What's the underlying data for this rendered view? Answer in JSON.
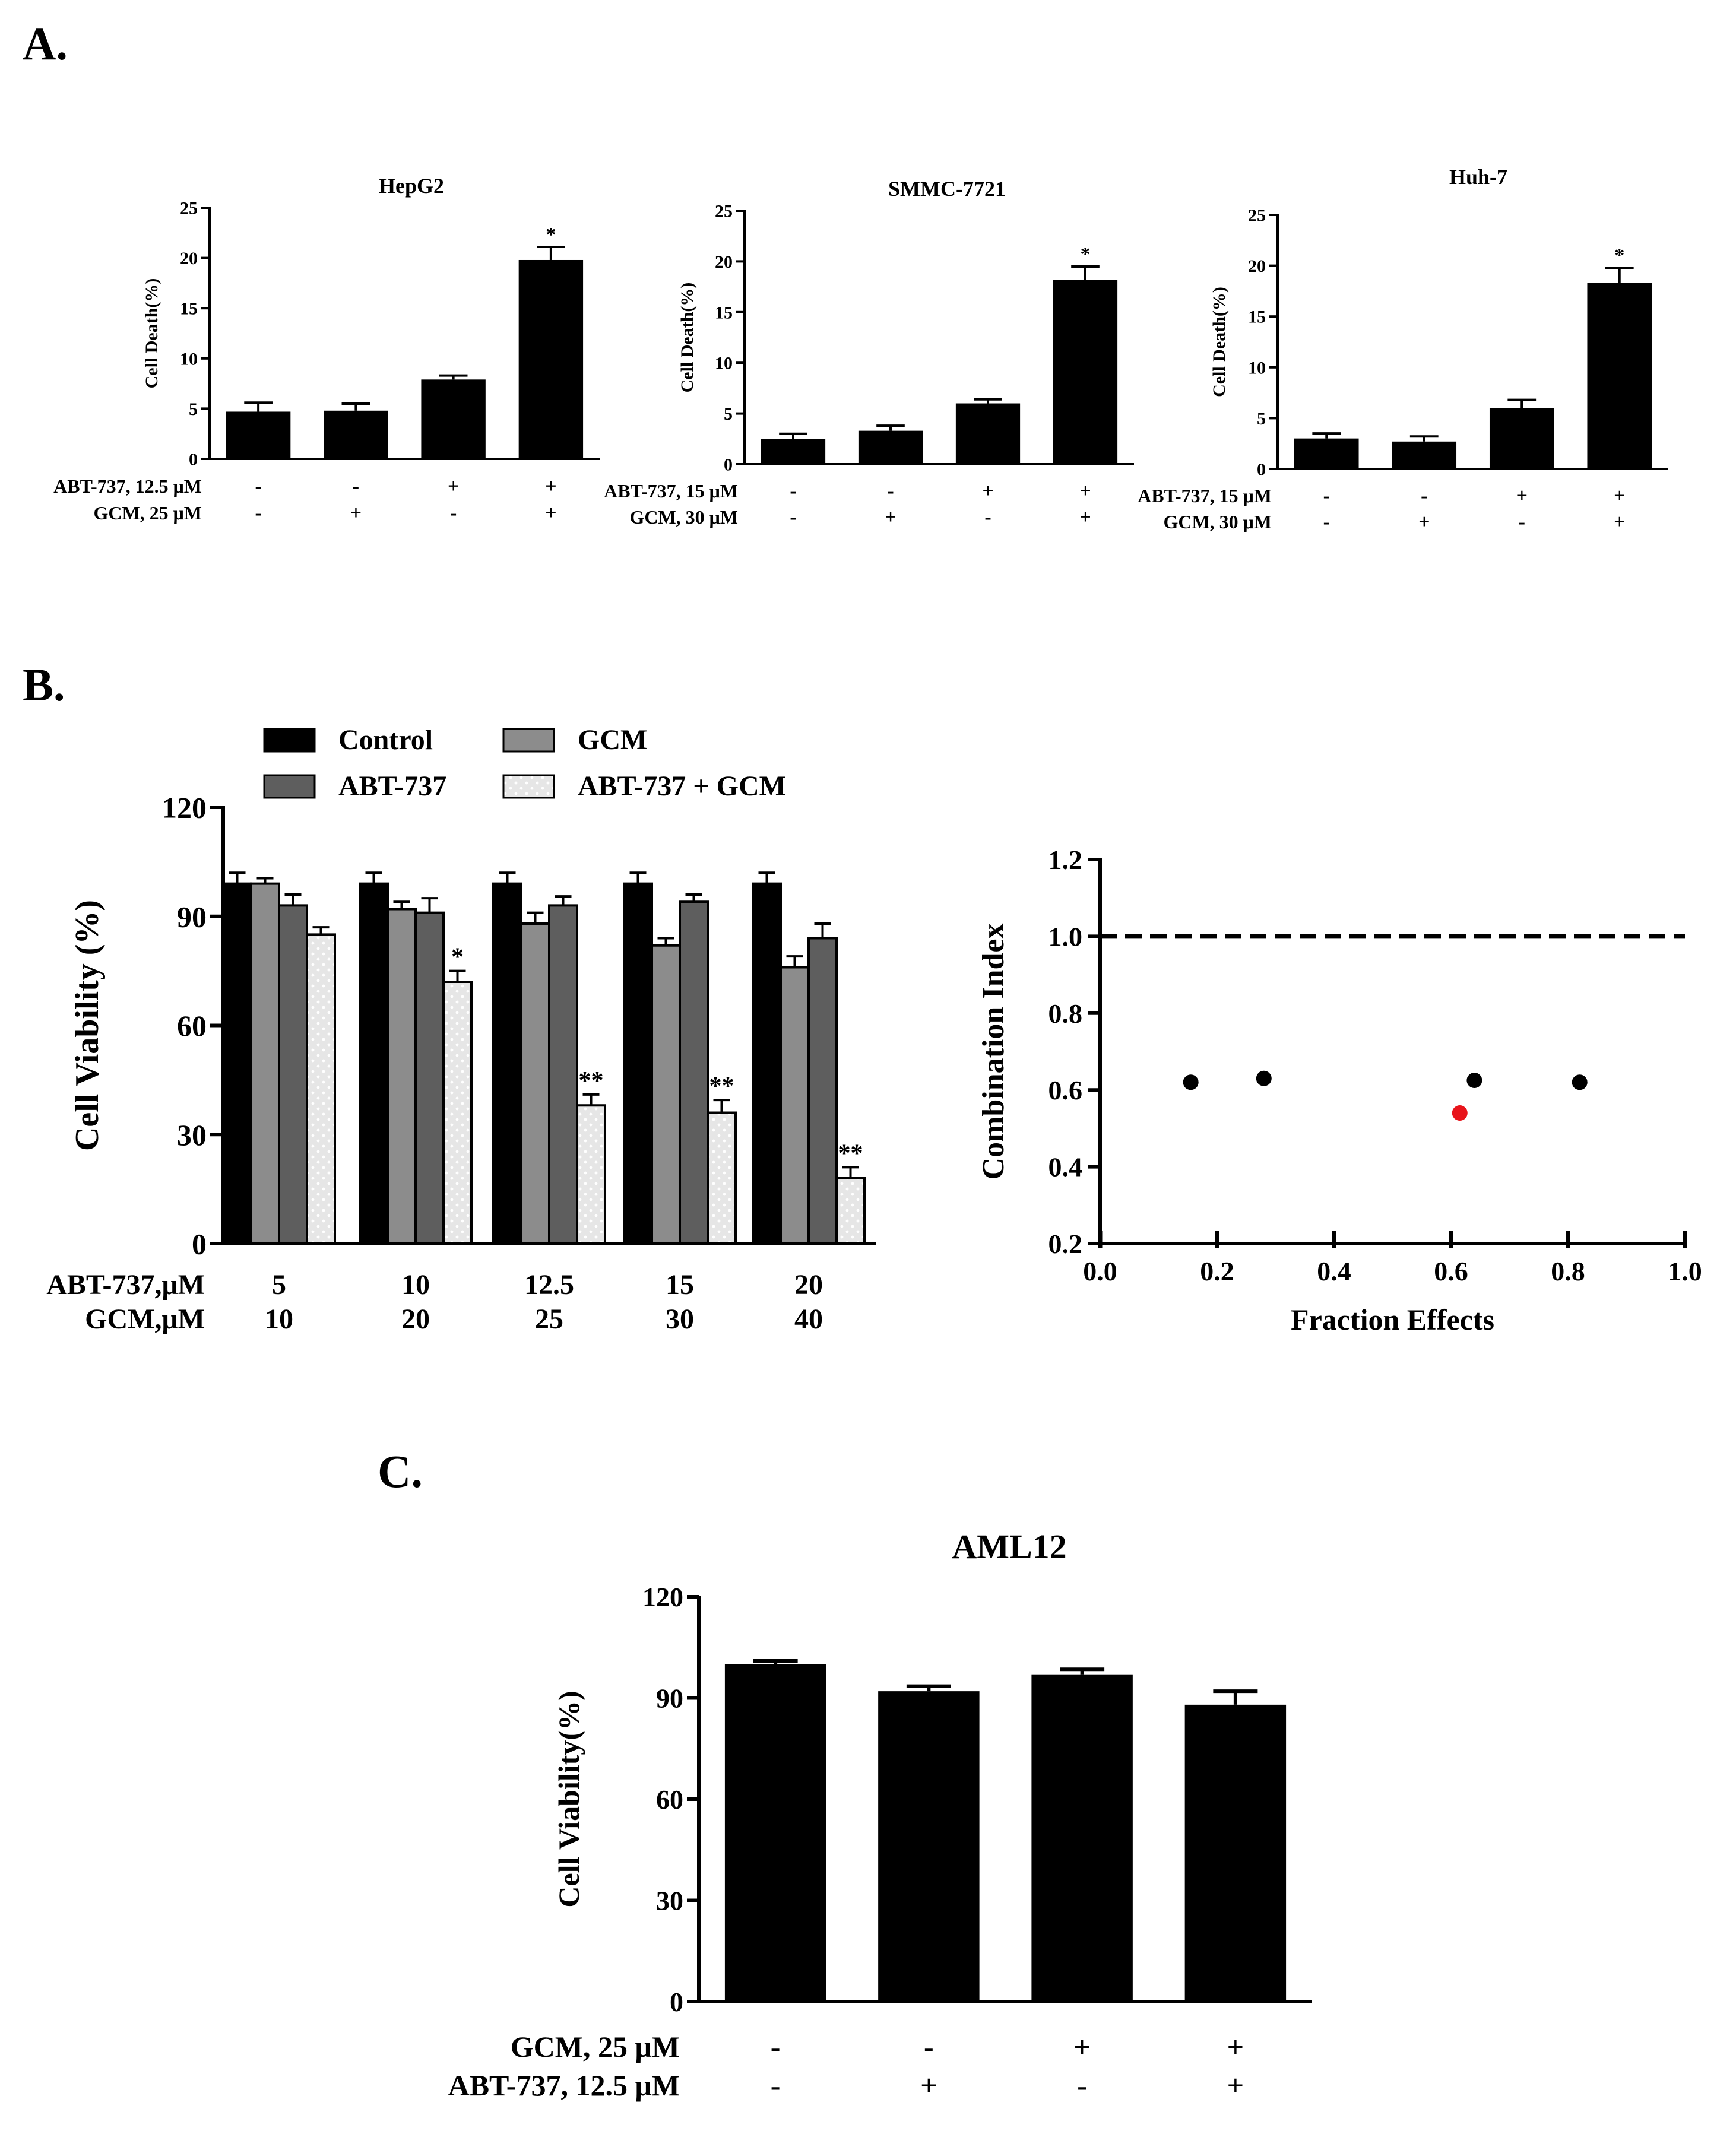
{
  "panels": {
    "A": "A.",
    "B": "B.",
    "C": "C."
  },
  "colors": {
    "bar_black": "#000000",
    "gray_light": "#8c8c8c",
    "gray_dark": "#5e5e5e",
    "dotted_bg": "#e6e6e6",
    "highlight": "#e8141b"
  },
  "chart_data": [
    {
      "id": "hepg2",
      "type": "bar",
      "title": "HepG2",
      "ylabel": "Cell Death(%)",
      "ylim": [
        0,
        25
      ],
      "yticks": [
        0,
        5,
        10,
        15,
        20,
        25
      ],
      "values": [
        4.7,
        4.8,
        7.9,
        19.8
      ],
      "errors": [
        0.9,
        0.7,
        0.4,
        1.3
      ],
      "significance": [
        "",
        "",
        "",
        "*"
      ],
      "conditions": [
        {
          "label": "ABT-737, 12.5 μM",
          "signs": [
            "-",
            "-",
            "+",
            "+"
          ]
        },
        {
          "label": "GCM, 25 μM",
          "signs": [
            "-",
            "+",
            "-",
            "+"
          ]
        }
      ]
    },
    {
      "id": "smmc",
      "type": "bar",
      "title": "SMMC-7721",
      "ylabel": "Cell Death(%)",
      "ylim": [
        0,
        25
      ],
      "yticks": [
        0,
        5,
        10,
        15,
        20,
        25
      ],
      "values": [
        2.5,
        3.3,
        6.0,
        18.2
      ],
      "errors": [
        0.5,
        0.5,
        0.4,
        1.3
      ],
      "significance": [
        "",
        "",
        "",
        "*"
      ],
      "conditions": [
        {
          "label": "ABT-737, 15 μM",
          "signs": [
            "-",
            "-",
            "+",
            "+"
          ]
        },
        {
          "label": "GCM, 30 μM",
          "signs": [
            "-",
            "+",
            "-",
            "+"
          ]
        }
      ]
    },
    {
      "id": "huh7",
      "type": "bar",
      "title": "Huh-7",
      "ylabel": "Cell Death(%)",
      "ylim": [
        0,
        25
      ],
      "yticks": [
        0,
        5,
        10,
        15,
        20,
        25
      ],
      "values": [
        3.0,
        2.7,
        6.0,
        18.3
      ],
      "errors": [
        0.5,
        0.5,
        0.8,
        1.5
      ],
      "significance": [
        "",
        "",
        "",
        "*"
      ],
      "conditions": [
        {
          "label": "ABT-737, 15 μM",
          "signs": [
            "-",
            "-",
            "+",
            "+"
          ]
        },
        {
          "label": "GCM, 30 μM",
          "signs": [
            "-",
            "+",
            "-",
            "+"
          ]
        }
      ]
    },
    {
      "id": "viability",
      "type": "bar",
      "title": "",
      "ylabel": "Cell Viability (%)",
      "ylim": [
        0,
        120
      ],
      "yticks": [
        0,
        30,
        60,
        90,
        120
      ],
      "categories": [
        "5",
        "10",
        "12.5",
        "15",
        "20"
      ],
      "category_rows": [
        {
          "label": "ABT-737,μM",
          "values": [
            "5",
            "10",
            "12.5",
            "15",
            "20"
          ]
        },
        {
          "label": "GCM,μM",
          "values": [
            "10",
            "20",
            "25",
            "30",
            "40"
          ]
        }
      ],
      "series": [
        {
          "name": "Control",
          "style": "black",
          "values": [
            99,
            99,
            99,
            99,
            99
          ],
          "errors": [
            3,
            3,
            3,
            3,
            3
          ],
          "significance": [
            "",
            "",
            "",
            "",
            ""
          ]
        },
        {
          "name": "GCM",
          "style": "gray_light",
          "values": [
            99,
            92,
            88,
            82,
            76
          ],
          "errors": [
            1.5,
            2,
            3,
            2,
            3
          ],
          "significance": [
            "",
            "",
            "",
            "",
            ""
          ]
        },
        {
          "name": "ABT-737",
          "style": "gray_dark",
          "values": [
            93,
            91,
            93,
            94,
            84
          ],
          "errors": [
            3,
            4,
            2.5,
            2,
            4
          ],
          "significance": [
            "",
            "",
            "",
            "",
            ""
          ]
        },
        {
          "name": "ABT-737 + GCM",
          "style": "dotted",
          "values": [
            85,
            72,
            38,
            36,
            18
          ],
          "errors": [
            2,
            3,
            3,
            3.5,
            3
          ],
          "significance": [
            "",
            "*",
            "**",
            "**",
            "**"
          ]
        }
      ]
    },
    {
      "id": "combination",
      "type": "scatter",
      "title": "",
      "xlabel": "Fraction Effects",
      "ylabel": "Combination Index",
      "xlim": [
        0.0,
        1.0
      ],
      "ylim": [
        0.2,
        1.2
      ],
      "xticks": [
        "0.0",
        "0.2",
        "0.4",
        "0.6",
        "0.8",
        "1.0"
      ],
      "yticks": [
        "0.2",
        "0.4",
        "0.6",
        "0.8",
        "1.0",
        "1.2"
      ],
      "reference_line": 1.0,
      "points": [
        {
          "x": 0.155,
          "y": 0.62,
          "highlight": false
        },
        {
          "x": 0.28,
          "y": 0.63,
          "highlight": false
        },
        {
          "x": 0.64,
          "y": 0.625,
          "highlight": false
        },
        {
          "x": 0.82,
          "y": 0.62,
          "highlight": false
        },
        {
          "x": 0.615,
          "y": 0.54,
          "highlight": true
        }
      ]
    },
    {
      "id": "aml12",
      "type": "bar",
      "title": "AML12",
      "ylabel": "Cell Viability(%)",
      "ylim": [
        0,
        120
      ],
      "yticks": [
        0,
        30,
        60,
        90,
        120
      ],
      "values": [
        100,
        92,
        97,
        88
      ],
      "errors": [
        1,
        1.5,
        1.5,
        4
      ],
      "significance": [
        "",
        "",
        "",
        ""
      ],
      "conditions": [
        {
          "label": "GCM, 25 μM",
          "signs": [
            "-",
            "-",
            "+",
            "+"
          ]
        },
        {
          "label": "ABT-737, 12.5 μM",
          "signs": [
            "-",
            "+",
            "-",
            "+"
          ]
        }
      ]
    }
  ]
}
